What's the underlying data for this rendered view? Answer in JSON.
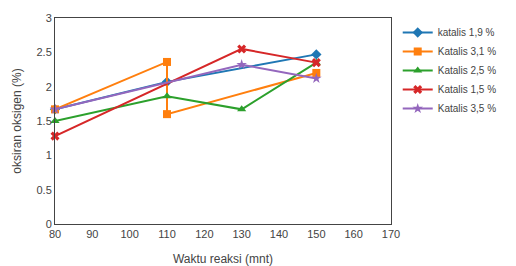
{
  "chart_data": {
    "type": "line",
    "xlabel": "Waktu reaksi (mnt)",
    "ylabel": "oksiran oksigen (%)",
    "series": [
      {
        "name": "katalis 1,9 %",
        "x": [
          80,
          110,
          150
        ],
        "values": [
          1.67,
          2.07,
          2.47
        ],
        "marker": "diamond",
        "line_style": "solid"
      },
      {
        "name": "Katalis 3,1 %",
        "x": [
          80,
          110,
          110,
          150
        ],
        "values": [
          1.67,
          2.36,
          1.6,
          2.2
        ],
        "marker": "square",
        "line_style": "solid"
      },
      {
        "name": "Katalis 2,5 %",
        "x": [
          80,
          110,
          130,
          150
        ],
        "values": [
          1.5,
          1.86,
          1.67,
          2.35
        ],
        "marker": "triangle-up",
        "line_style": "solid"
      },
      {
        "name": "Katalis 1,5 %",
        "x": [
          80,
          130,
          150
        ],
        "values": [
          1.28,
          2.55,
          2.35
        ],
        "marker": "x",
        "line_style": "solid"
      },
      {
        "name": "Katalis 3,5 %",
        "x": [
          80,
          130,
          150
        ],
        "values": [
          1.67,
          2.32,
          2.12
        ],
        "marker": "star",
        "line_style": "solid"
      }
    ],
    "xlim": [
      80,
      170
    ],
    "xticks": [
      80,
      90,
      100,
      110,
      120,
      130,
      140,
      150,
      160,
      170
    ],
    "ylim": [
      0,
      3
    ],
    "yticks": [
      0,
      0.5,
      1.0,
      1.5,
      2.0,
      2.5,
      3.0
    ],
    "grid": false,
    "legend": "right"
  }
}
